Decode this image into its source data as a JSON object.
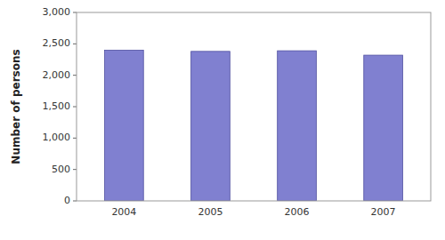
{
  "chart_data": {
    "type": "bar",
    "categories": [
      "2004",
      "2005",
      "2006",
      "2007"
    ],
    "values": [
      2400,
      2380,
      2390,
      2320
    ],
    "color": "#8080d0",
    "ylabel": "Number of persons",
    "ylim": [
      0,
      3000
    ],
    "yticks": [
      0,
      500,
      {
        "value": 1000,
        "label": "1,000"
      },
      {
        "value": 1500,
        "label": "1,500"
      },
      {
        "value": 2000,
        "label": "2,000"
      },
      {
        "value": 2500,
        "label": "2,500"
      },
      {
        "value": 3000,
        "label": "3,000"
      }
    ]
  }
}
